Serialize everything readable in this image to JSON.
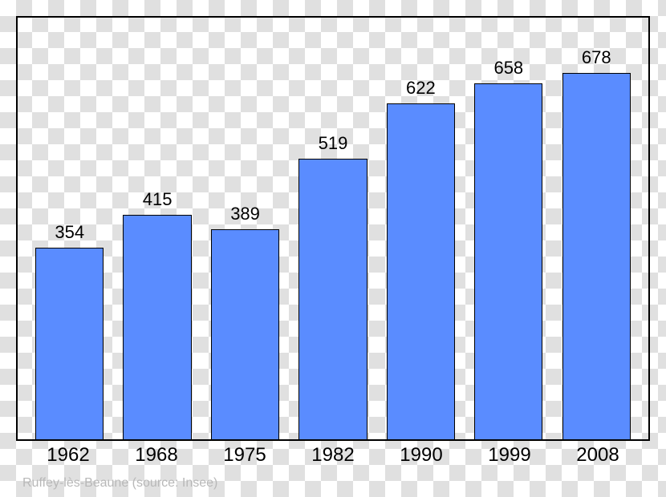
{
  "chart": {
    "type": "bar",
    "categories": [
      "1962",
      "1968",
      "1975",
      "1982",
      "1990",
      "1999",
      "2008"
    ],
    "values": [
      354,
      415,
      389,
      519,
      622,
      658,
      678
    ],
    "bar_color": "#5a8cff",
    "bar_border_color": "#000000",
    "border_color": "#000000",
    "border_width": 2,
    "ylim": [
      0,
      780
    ],
    "bar_width_pct": 78,
    "value_label_fontsize": 22,
    "x_label_fontsize": 24,
    "background": "transparent"
  },
  "source": {
    "text": "Ruffey-lès-Beaune   (source: Insee)",
    "color": "#b8b8b8",
    "fontsize": 16
  }
}
